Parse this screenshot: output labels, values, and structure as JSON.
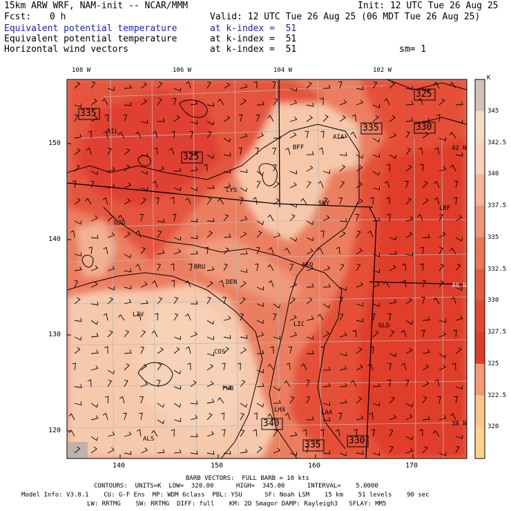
{
  "header": {
    "model": "15km ARW WRF, NAM-init -- NCAR/MMM",
    "init": "Init: 12 UTC Tue 26 Aug 25",
    "fcst_label": "Fcst:",
    "fcst_value": "0 h",
    "valid": "Valid: 12 UTC Tue 26 Aug 25 (06 MDT Tue 26 Aug 25)",
    "rows": [
      {
        "name": "Equivalent potential temperature",
        "level": "at k-index =  51",
        "extra": "",
        "color": "#1a1acc"
      },
      {
        "name": "Equivalent potential temperature",
        "level": "at k-index =  51",
        "extra": "",
        "color": "#000000"
      },
      {
        "name": "Horizontal wind vectors",
        "level": "at k-index =  51",
        "extra": "sm= 1",
        "color": "#000000"
      }
    ]
  },
  "top_lon_labels": [
    "108 W",
    "106 W",
    "104 W",
    "102 W"
  ],
  "right_lat_labels": [
    "42 N",
    "40 N",
    "38 N"
  ],
  "x_ticks": [
    "140",
    "150",
    "160",
    "170"
  ],
  "y_ticks": [
    "150",
    "140",
    "130",
    "120"
  ],
  "city_labels": [
    "RIL",
    "BFF",
    "AIA",
    "CYS",
    "SNY",
    "LBF",
    "GJG",
    "AKO",
    "BRU",
    "DEN",
    "LIV",
    "LIC",
    "GLD",
    "COS",
    "PUB",
    "LHX",
    "LAA",
    "ALS"
  ],
  "contour_labels": [
    "335",
    "325",
    "335",
    "325",
    "330",
    "340",
    "335",
    "330"
  ],
  "colorbar": {
    "unit": "K",
    "labels": [
      "345",
      "342.5",
      "340",
      "337.5",
      "335",
      "332.5",
      "330",
      "327.5",
      "325",
      "322.5",
      "320"
    ],
    "colors": [
      "#d2c2b4",
      "#f2dcc4",
      "#f9d0b8",
      "#f7b49a",
      "#f0947a",
      "#ea7558",
      "#e55a41",
      "#e3492f",
      "#e03d28",
      "#f6987a",
      "#fcc686",
      "#ffd28a"
    ]
  },
  "footer": {
    "barb": "BARB VECTORS:  FULL BARB = 10 kts",
    "contours": "CONTOURS:  UNITS=K  LOW=  320.00      HIGH=  345.00      INTERVAL=    5.0000",
    "model_line": "Model Info: V3.8.1    CU: G-F Ens  MP: WDM 6class  PBL: YSU      SF: Noah LSM    15 km    51 levels    90 sec",
    "phys_line": "LW: RRTMG    SW: RRTMG  DIFF: full    KM: 2D Smagor DAMP: Rayleigh3   SFLAY: MM5"
  }
}
